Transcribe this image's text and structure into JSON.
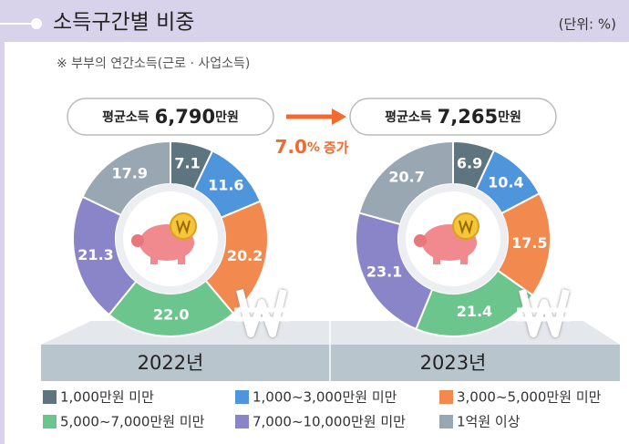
{
  "title": "소득구간별 비중",
  "unit": "(단위: %)",
  "note": "※ 부부의 연간소득(근로 · 사업소득)",
  "growth_rate": "7.0",
  "growth_unit": "%",
  "growth_text": "증가",
  "chart_data": [
    {
      "type": "pie",
      "title": "2022년",
      "average_label": "평균소득",
      "average": "6,790",
      "average_unit": "만원",
      "categories": [
        "1,000만원 미만",
        "1,000~3,000만원 미만",
        "3,000~5,000만원 미만",
        "5,000~7,000만원 미만",
        "7,000~10,000만원 미만",
        "1억원 이상"
      ],
      "colors": [
        "#5e7580",
        "#4f95dc",
        "#f28a50",
        "#6dc58e",
        "#8a84c8",
        "#99a7b3"
      ],
      "values": [
        7.1,
        11.6,
        20.2,
        22.0,
        21.3,
        17.9
      ],
      "value_labels": [
        "7.1",
        "11.6",
        "20.2",
        "22.0",
        "21.3",
        "17.9"
      ]
    },
    {
      "type": "pie",
      "title": "2023년",
      "average_label": "평균소득",
      "average": "7,265",
      "average_unit": "만원",
      "categories": [
        "1,000만원 미만",
        "1,000~3,000만원 미만",
        "3,000~5,000만원 미만",
        "5,000~7,000만원 미만",
        "7,000~10,000만원 미만",
        "1억원 이상"
      ],
      "colors": [
        "#5e7580",
        "#4f95dc",
        "#f28a50",
        "#6dc58e",
        "#8a84c8",
        "#99a7b3"
      ],
      "values": [
        6.9,
        10.4,
        17.5,
        21.4,
        23.1,
        20.7
      ],
      "value_labels": [
        "6.9",
        "10.4",
        "17.5",
        "21.4",
        "23.1",
        "20.7"
      ]
    }
  ]
}
